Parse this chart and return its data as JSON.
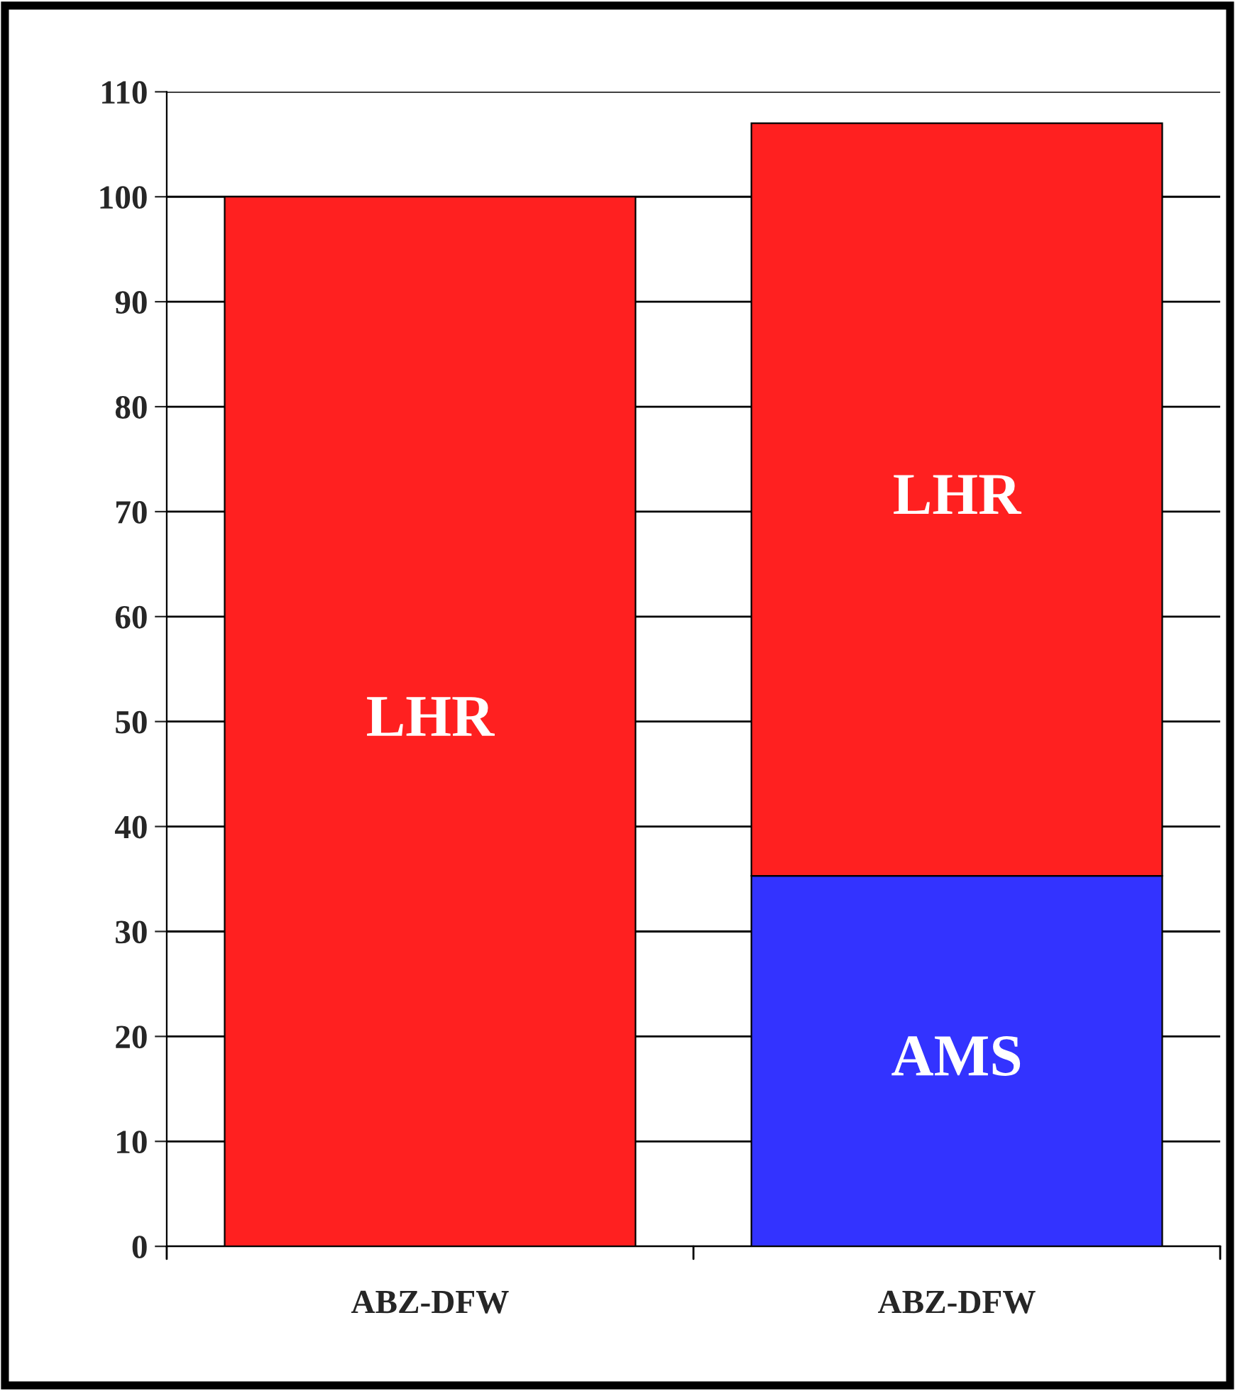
{
  "chart_data": {
    "type": "bar",
    "stacked": true,
    "categories": [
      "ABZ-DFW",
      "ABZ-DFW"
    ],
    "series": [
      {
        "name": "AMS",
        "color": "#3333ff",
        "values": [
          null,
          35.3
        ]
      },
      {
        "name": "LHR",
        "color": "#ff2020",
        "values": [
          100,
          71.7
        ]
      }
    ],
    "ylim": [
      0,
      110
    ],
    "yticks": [
      0,
      10,
      20,
      30,
      40,
      50,
      60,
      70,
      80,
      90,
      100,
      110
    ],
    "grid": "y",
    "legend": false
  }
}
